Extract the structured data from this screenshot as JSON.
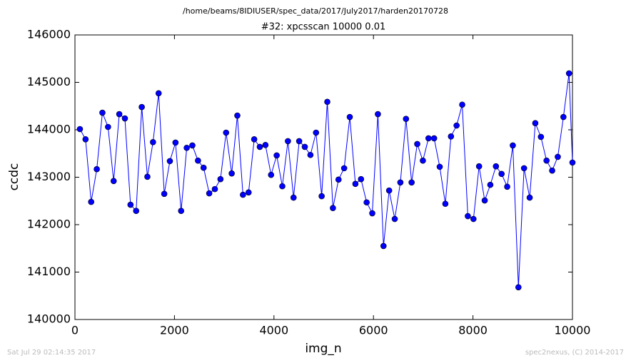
{
  "chart_data": {
    "type": "line",
    "suptitle": "/home/beams/8IDIUSER/spec_data/2017/July2017/harden20170728",
    "title": "#32: xpcsscan 10000 0.01",
    "x_label": "img_n",
    "y_label": "ccdc",
    "footer_left": "Sat Jul 29 02:14:35 2017",
    "footer_right": "spec2nexus, (C) 2014-2017",
    "xlim": [
      0,
      10000
    ],
    "xticks": [
      0,
      2000,
      4000,
      6000,
      8000,
      10000
    ],
    "ylim": [
      140000,
      146000
    ],
    "yticks": [
      140000,
      141000,
      142000,
      143000,
      144000,
      145000,
      146000
    ],
    "x": [
      100,
      213,
      326,
      439,
      552,
      665,
      778,
      891,
      1004,
      1117,
      1230,
      1343,
      1456,
      1569,
      1682,
      1795,
      1908,
      2021,
      2134,
      2247,
      2360,
      2473,
      2586,
      2699,
      2812,
      2925,
      3038,
      3151,
      3264,
      3377,
      3490,
      3603,
      3716,
      3829,
      3942,
      4055,
      4168,
      4281,
      4394,
      4507,
      4620,
      4733,
      4846,
      4959,
      5072,
      5185,
      5298,
      5411,
      5524,
      5637,
      5750,
      5863,
      5976,
      6089,
      6202,
      6315,
      6428,
      6541,
      6654,
      6767,
      6880,
      6993,
      7106,
      7219,
      7332,
      7445,
      7558,
      7671,
      7784,
      7897,
      8010,
      8123,
      8236,
      8349,
      8462,
      8575,
      8688,
      8801,
      8914,
      9027,
      9140,
      9253,
      9366,
      9479,
      9592,
      9705,
      9818,
      9931,
      10000
    ],
    "series": [
      {
        "name": "ccdc",
        "color": "#0000ff",
        "values": [
          144015,
          143800,
          142480,
          143170,
          144360,
          144060,
          142920,
          144330,
          144240,
          142420,
          142290,
          144480,
          143010,
          143740,
          144770,
          142650,
          143340,
          143730,
          142290,
          143620,
          143670,
          143350,
          143200,
          142660,
          142750,
          142960,
          143940,
          143080,
          144300,
          142630,
          142680,
          143800,
          143640,
          143680,
          143050,
          143460,
          142810,
          143760,
          142570,
          143760,
          143640,
          143470,
          143940,
          142600,
          144590,
          142350,
          142950,
          143190,
          144270,
          142860,
          142960,
          142470,
          142240,
          144330,
          141550,
          142720,
          142120,
          142890,
          144230,
          142890,
          143700,
          143350,
          143820,
          143820,
          143220,
          142440,
          143860,
          144090,
          144530,
          142180,
          142120,
          143230,
          142510,
          142840,
          143230,
          143070,
          142800,
          143670,
          140680,
          143190,
          142570,
          144140,
          143850,
          143350,
          143140,
          143430,
          144270,
          145190,
          143310
        ]
      }
    ]
  }
}
